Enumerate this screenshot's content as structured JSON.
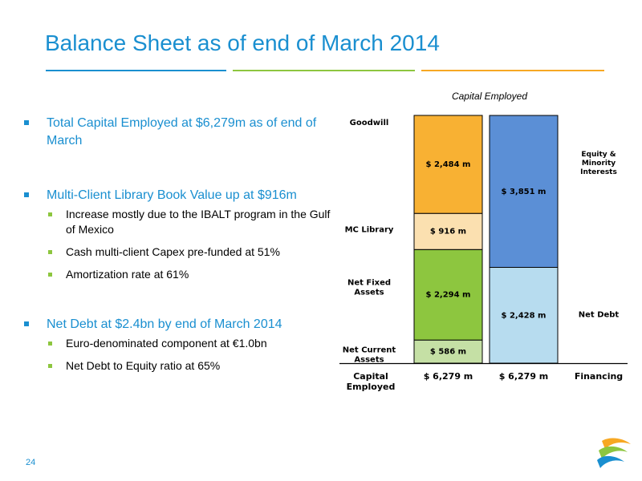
{
  "slide": {
    "title": "Balance Sheet as of end of March 2014",
    "page_number": "24",
    "rule_colors": [
      "#1a8fd0",
      "#8dc63f",
      "#f7a823"
    ]
  },
  "bullets": [
    {
      "text": "Total Capital Employed at $6,279m as of end of March",
      "subs": []
    },
    {
      "text": "Multi-Client Library Book Value up at $916m",
      "subs": [
        "Increase mostly due to the IBALT program in the Gulf of Mexico",
        "Cash multi-client Capex pre-funded at 51%",
        "Amortization rate at 61%"
      ]
    },
    {
      "text": "Net Debt at $2.4bn by end of March 2014",
      "subs": [
        "Euro-denominated component at €1.0bn",
        "Net Debt to Equity ratio at 65%"
      ]
    }
  ],
  "chart_data": {
    "type": "bar",
    "stacked": true,
    "title": "Capital Employed",
    "unit": "$ m",
    "ylim": [
      0,
      6279
    ],
    "categories": [
      "$ 6,279 m",
      "$ 6,279 m"
    ],
    "axis_labels": [
      "Capital Employed",
      "Financing"
    ],
    "stacks": [
      {
        "segments": [
          {
            "name": "Net Current Assets",
            "value": 586,
            "label": "$ 586 m",
            "color": "#c5e0a5"
          },
          {
            "name": "Net Fixed Assets",
            "value": 2294,
            "label": "$ 2,294 m",
            "color": "#8dc63f"
          },
          {
            "name": "MC Library",
            "value": 916,
            "label": "$ 916 m",
            "color": "#fbe0b0"
          },
          {
            "name": "Goodwill",
            "value": 2484,
            "label": "$ 2,484 m",
            "color": "#f8b133"
          }
        ]
      },
      {
        "segments": [
          {
            "name": "Net Debt",
            "value": 2428,
            "label": "$ 2,428 m",
            "color": "#b7dcef"
          },
          {
            "name": "Equity & Minority Interests",
            "value": 3851,
            "label": "$ 3,851 m",
            "color": "#5b8fd6"
          }
        ]
      }
    ]
  }
}
